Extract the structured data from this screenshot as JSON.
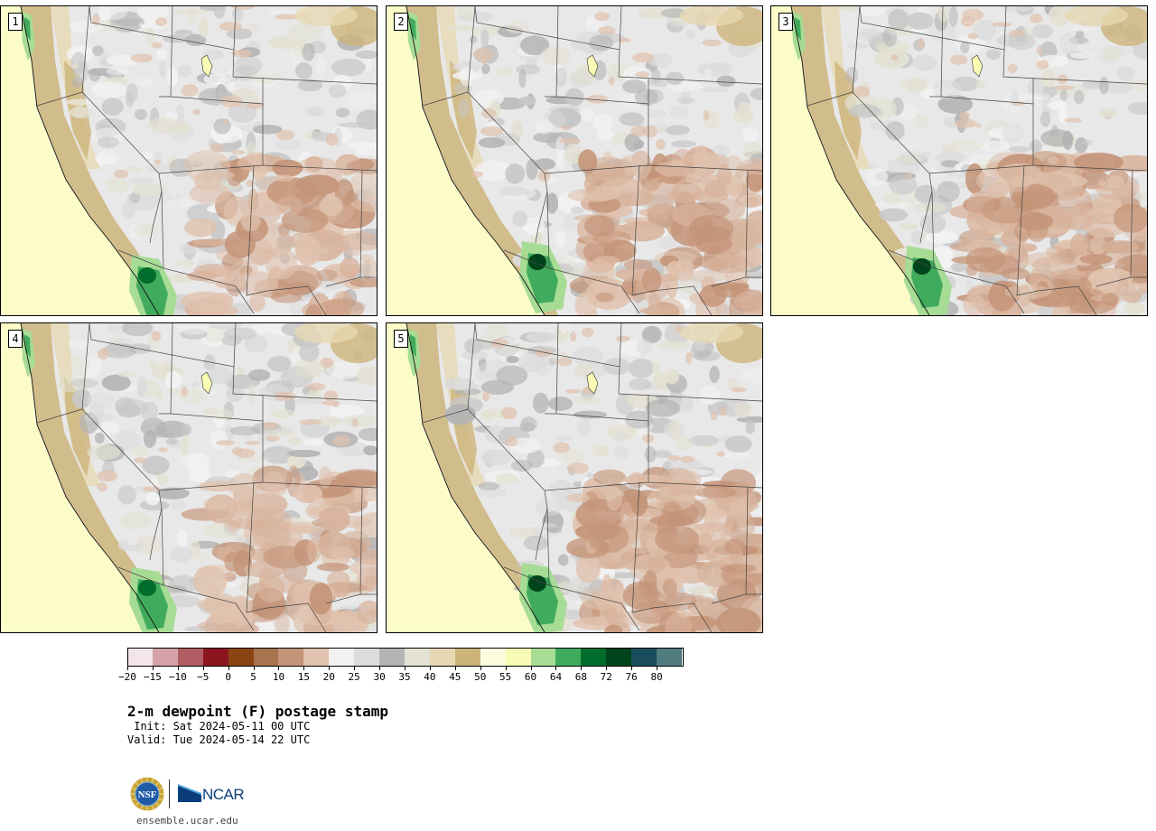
{
  "panels": [
    {
      "label": "1"
    },
    {
      "label": "2"
    },
    {
      "label": "3"
    },
    {
      "label": "4"
    },
    {
      "label": "5"
    }
  ],
  "colorbar": {
    "levels": [
      -20,
      -15,
      -10,
      -5,
      0,
      5,
      10,
      15,
      20,
      25,
      30,
      35,
      40,
      45,
      50,
      55,
      60,
      64,
      68,
      72,
      76,
      80
    ],
    "tick_labels": [
      "−20",
      "−15",
      "−10",
      "−5",
      "0",
      "5",
      "10",
      "15",
      "20",
      "25",
      "30",
      "35",
      "40",
      "45",
      "50",
      "55",
      "60",
      "64",
      "68",
      "72",
      "76",
      "80"
    ],
    "colors": [
      "#f4e6e8",
      "#d4a2a7",
      "#b05d63",
      "#8b1620",
      "#8b4513",
      "#a8744f",
      "#c49478",
      "#e0c2ae",
      "#f2f2f2",
      "#dcdcdc",
      "#b4b4b4",
      "#e3e1d2",
      "#e6d8b2",
      "#cdb47a",
      "#fffde0",
      "#f8fbb4",
      "#a7dc95",
      "#41ab5d",
      "#006d2c",
      "#00441b",
      "#1a4e5c",
      "#507b7f"
    ]
  },
  "title": "2-m dewpoint (F) postage stamp",
  "init": " Init: Sat 2024-05-11 00 UTC",
  "valid": "Valid: Tue 2024-05-14 22 UTC",
  "footer": {
    "nsf_logo_text": "NSF",
    "ncar_logo_text": "NCAR",
    "url": "ensemble.ucar.edu"
  }
}
